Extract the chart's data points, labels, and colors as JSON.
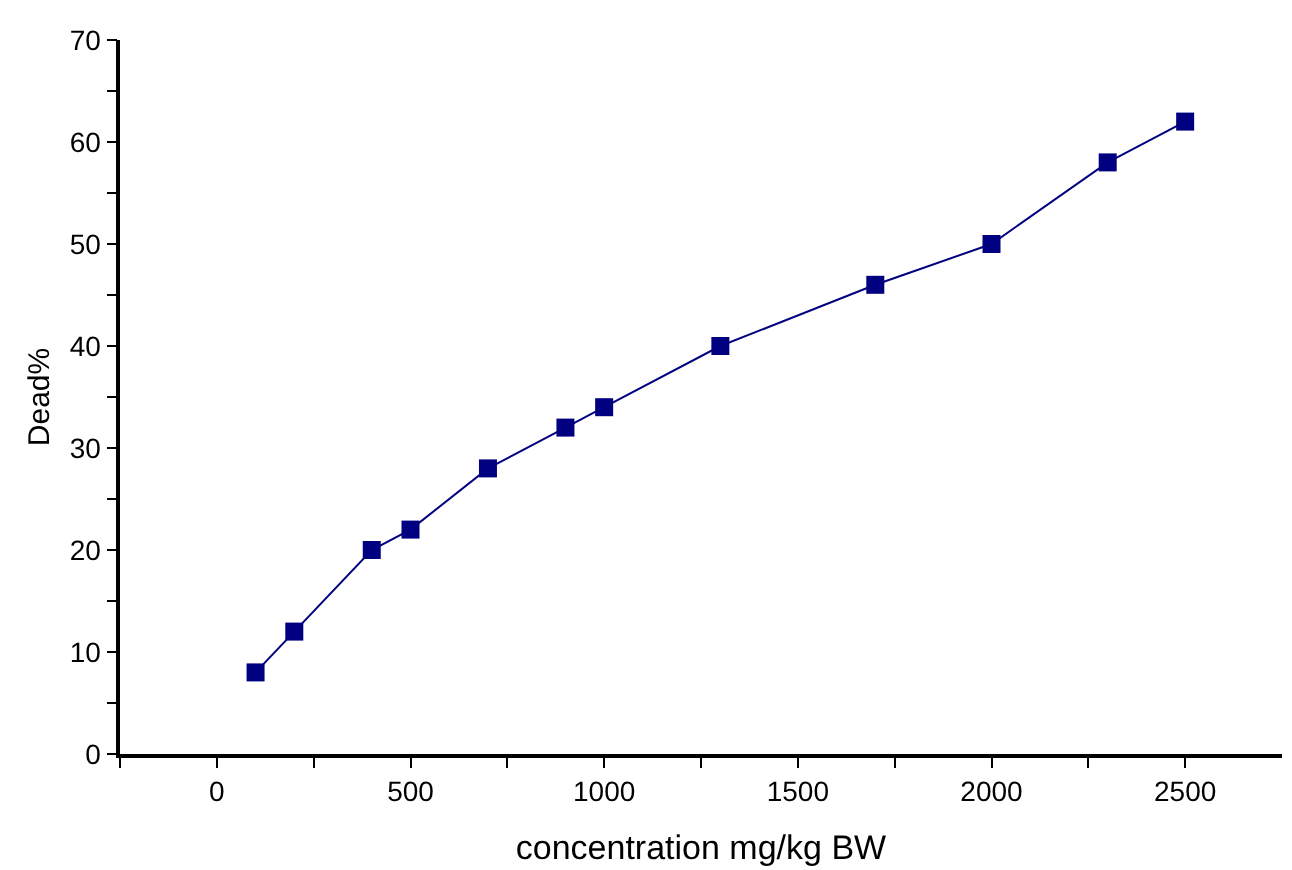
{
  "chart_data": {
    "type": "line",
    "xlabel": "concentration mg/kg BW",
    "ylabel": "Dead%",
    "x": [
      100,
      200,
      400,
      500,
      700,
      900,
      1000,
      1300,
      1700,
      2000,
      2300,
      2500
    ],
    "series": [
      {
        "color": "#000080",
        "values": [
          8,
          12,
          20,
          22,
          28,
          32,
          34,
          40,
          46,
          50,
          58,
          62
        ]
      }
    ],
    "xlim": [
      -250,
      2750
    ],
    "xticks": [
      {
        "value": -250,
        "label": null
      },
      0,
      {
        "value": 250,
        "label": null
      },
      500,
      {
        "value": 750,
        "label": null
      },
      1000,
      {
        "value": 1250,
        "label": null
      },
      1500,
      {
        "value": 1750,
        "label": null
      },
      2000,
      {
        "value": 2250,
        "label": null
      },
      2500
    ],
    "ylim": [
      0,
      70
    ],
    "yticks": [
      0,
      {
        "value": 5,
        "label": null
      },
      10,
      {
        "value": 15,
        "label": null
      },
      20,
      {
        "value": 25,
        "label": null
      },
      30,
      {
        "value": 35,
        "label": null
      },
      40,
      {
        "value": 45,
        "label": null
      },
      50,
      {
        "value": 55,
        "label": null
      },
      60,
      {
        "value": 65,
        "label": null
      },
      70
    ],
    "marker": "square",
    "line_style": "solid",
    "legend": false
  }
}
